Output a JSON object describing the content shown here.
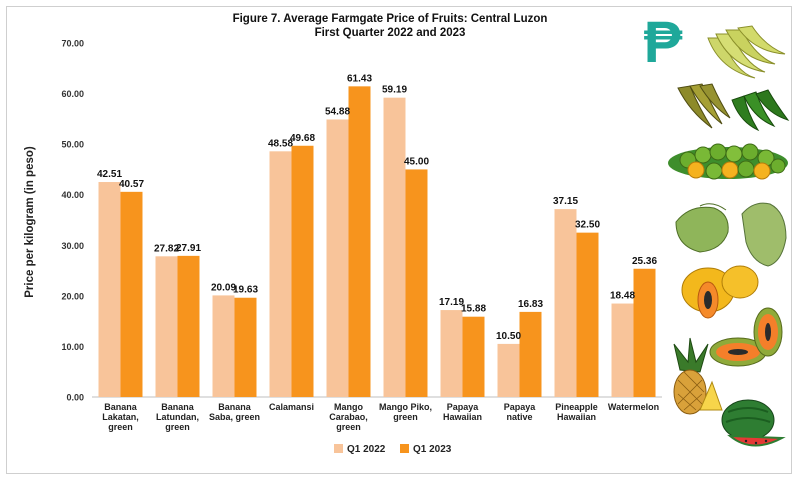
{
  "chart_data": {
    "type": "bar",
    "title": "Figure 7. Average Farmgate Price of Fruits: Central Luzon",
    "subtitle": "First Quarter 2022 and 2023",
    "ylabel": "Price per kilogram (in peso)",
    "xlabel": "",
    "ylim": [
      0,
      70
    ],
    "yticks": [
      "0.00",
      "10.00",
      "20.00",
      "30.00",
      "40.00",
      "50.00",
      "60.00",
      "70.00"
    ],
    "grid": false,
    "legend_position": "bottom",
    "categories": [
      [
        "Banana",
        "Lakatan,",
        "green"
      ],
      [
        "Banana",
        "Latundan,",
        "green"
      ],
      [
        "Banana",
        "Saba, green"
      ],
      [
        "Calamansi"
      ],
      [
        "Mango",
        "Carabao,",
        "green"
      ],
      [
        "Mango Piko,",
        "green"
      ],
      [
        "Papaya",
        "Hawaiian"
      ],
      [
        "Papaya",
        "native"
      ],
      [
        "Pineapple",
        "Hawaiian"
      ],
      [
        "Watermelon"
      ]
    ],
    "series": [
      {
        "name": "Q1 2022",
        "color": "#f8c49a",
        "values": [
          42.51,
          27.82,
          20.09,
          48.58,
          54.88,
          59.19,
          17.19,
          10.5,
          37.15,
          18.48
        ],
        "labels": [
          "42.51",
          "27.82",
          "20.09",
          "48.58",
          "54.88",
          "59.19",
          "17.19",
          "10.50",
          "37.15",
          "18.48"
        ]
      },
      {
        "name": "Q1 2023",
        "color": "#f7941d",
        "values": [
          40.57,
          27.91,
          19.63,
          49.68,
          61.43,
          45.0,
          15.88,
          16.83,
          32.5,
          25.36
        ],
        "labels": [
          "40.57",
          "27.91",
          "19.63",
          "49.68",
          "61.43",
          "45.00",
          "15.88",
          "16.83",
          "32.50",
          "25.36"
        ]
      }
    ]
  },
  "decorations": {
    "currency_symbol": "₱",
    "currency_color": "#1fa89a",
    "fruit_images": [
      "banana-lakatan-image",
      "banana-latundan-image",
      "banana-saba-image",
      "calamansi-image",
      "mango-carabao-image",
      "mango-piko-image",
      "papaya-hawaiian-image",
      "papaya-native-image",
      "pineapple-image",
      "watermelon-image"
    ]
  }
}
